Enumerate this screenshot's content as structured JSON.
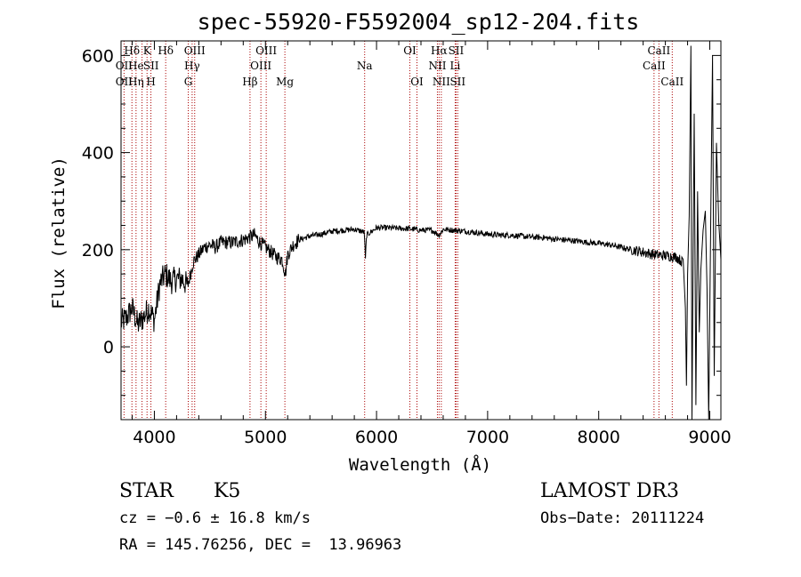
{
  "chart_data": {
    "type": "line",
    "title": "spec-55920-F5592004_sp12-204.fits",
    "xlabel": "Wavelength (Å)",
    "ylabel": "Flux (relative)",
    "xlim": [
      3700,
      9100
    ],
    "ylim": [
      -150,
      630
    ],
    "x_ticks": [
      4000,
      5000,
      6000,
      7000,
      8000,
      9000
    ],
    "y_ticks": [
      0,
      200,
      400,
      600
    ],
    "line_color": "#000000",
    "marker_color": "#aa0000",
    "spectrum_anchors": [
      [
        3700,
        50
      ],
      [
        3750,
        60
      ],
      [
        3800,
        80
      ],
      [
        3850,
        45
      ],
      [
        3900,
        60
      ],
      [
        3950,
        80
      ],
      [
        4000,
        55
      ],
      [
        4050,
        130
      ],
      [
        4100,
        150
      ],
      [
        4150,
        135
      ],
      [
        4200,
        140
      ],
      [
        4250,
        140
      ],
      [
        4300,
        125
      ],
      [
        4350,
        175
      ],
      [
        4400,
        190
      ],
      [
        4450,
        205
      ],
      [
        4500,
        210
      ],
      [
        4550,
        205
      ],
      [
        4600,
        215
      ],
      [
        4700,
        215
      ],
      [
        4800,
        220
      ],
      [
        4850,
        225
      ],
      [
        4900,
        230
      ],
      [
        4950,
        215
      ],
      [
        5000,
        205
      ],
      [
        5050,
        195
      ],
      [
        5100,
        185
      ],
      [
        5150,
        180
      ],
      [
        5180,
        150
      ],
      [
        5200,
        190
      ],
      [
        5250,
        210
      ],
      [
        5300,
        220
      ],
      [
        5400,
        228
      ],
      [
        5500,
        232
      ],
      [
        5600,
        238
      ],
      [
        5700,
        240
      ],
      [
        5800,
        242
      ],
      [
        5890,
        236
      ],
      [
        5900,
        180
      ],
      [
        5910,
        230
      ],
      [
        6000,
        245
      ],
      [
        6100,
        245
      ],
      [
        6200,
        244
      ],
      [
        6300,
        243
      ],
      [
        6400,
        240
      ],
      [
        6500,
        240
      ],
      [
        6563,
        230
      ],
      [
        6600,
        242
      ],
      [
        6700,
        240
      ],
      [
        6800,
        238
      ],
      [
        6900,
        235
      ],
      [
        7000,
        232
      ],
      [
        7100,
        230
      ],
      [
        7200,
        230
      ],
      [
        7300,
        228
      ],
      [
        7400,
        226
      ],
      [
        7500,
        225
      ],
      [
        7600,
        222
      ],
      [
        7700,
        220
      ],
      [
        7800,
        218
      ],
      [
        7900,
        215
      ],
      [
        8000,
        213
      ],
      [
        8100,
        210
      ],
      [
        8200,
        205
      ],
      [
        8300,
        200
      ],
      [
        8400,
        195
      ],
      [
        8500,
        190
      ],
      [
        8600,
        188
      ],
      [
        8700,
        185
      ],
      [
        8750,
        175
      ]
    ],
    "lines": [
      {
        "name": "Hδ",
        "wl": 3798,
        "row": 0
      },
      {
        "name": "OII",
        "wl": 3727,
        "row": 1
      },
      {
        "name": "OII",
        "wl": 3727,
        "row": 2
      },
      {
        "name": "He",
        "wl": 3835,
        "row": 1
      },
      {
        "name": "Hη",
        "wl": 3835,
        "row": 2
      },
      {
        "name": "K",
        "wl": 3934,
        "row": 0
      },
      {
        "name": "SII",
        "wl": 3970,
        "row": 1
      },
      {
        "name": "H",
        "wl": 3969,
        "row": 2
      },
      {
        "name": "Hδ",
        "wl": 4102,
        "row": 0
      },
      {
        "name": "OIII",
        "wl": 4363,
        "row": 0
      },
      {
        "name": "Hγ",
        "wl": 4340,
        "row": 1
      },
      {
        "name": "G",
        "wl": 4305,
        "row": 2
      },
      {
        "name": "Hβ",
        "wl": 4861,
        "row": 2
      },
      {
        "name": "OIII",
        "wl": 5007,
        "row": 0
      },
      {
        "name": "OIII",
        "wl": 4959,
        "row": 1
      },
      {
        "name": "Mg",
        "wl": 5175,
        "row": 2
      },
      {
        "name": "Na",
        "wl": 5893,
        "row": 1
      },
      {
        "name": "OI",
        "wl": 6300,
        "row": 0
      },
      {
        "name": "OI",
        "wl": 6364,
        "row": 2
      },
      {
        "name": "Hα",
        "wl": 6563,
        "row": 0
      },
      {
        "name": "NII",
        "wl": 6548,
        "row": 1
      },
      {
        "name": "NII",
        "wl": 6583,
        "row": 2
      },
      {
        "name": "SII",
        "wl": 6716,
        "row": 0
      },
      {
        "name": "Li",
        "wl": 6708,
        "row": 1
      },
      {
        "name": "SII",
        "wl": 6731,
        "row": 2
      },
      {
        "name": "CaII",
        "wl": 8542,
        "row": 0
      },
      {
        "name": "CaII",
        "wl": 8498,
        "row": 1
      },
      {
        "name": "CaII",
        "wl": 8662,
        "row": 2
      }
    ],
    "marker_wavelengths": [
      3727,
      3798,
      3835,
      3889,
      3934,
      3969,
      4102,
      4305,
      4340,
      4363,
      4861,
      4959,
      5007,
      5175,
      5893,
      6300,
      6364,
      6548,
      6563,
      6583,
      6708,
      6716,
      6731,
      8498,
      8542,
      8662
    ]
  },
  "info": {
    "object_class": "STAR",
    "subclass": "K5",
    "survey": "LAMOST DR3",
    "redshift_line": "cz = −0.6 ± 16.8 km/s",
    "obs_date_line": "Obs−Date: 20111224",
    "coords_line": "RA = 145.76256, DEC =  13.96963"
  }
}
